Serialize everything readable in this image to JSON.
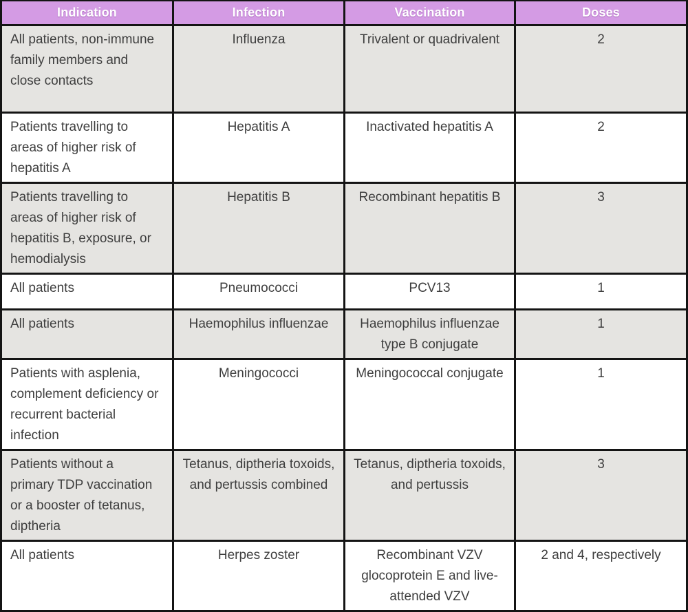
{
  "header": {
    "columns": [
      "Indication",
      "Infection",
      "Vaccination",
      "Doses"
    ]
  },
  "rows": [
    {
      "indication": "All patients, non-immune family members and close contacts",
      "infection": "Influenza",
      "vaccination": "Trivalent or quadrivalent",
      "doses": "2"
    },
    {
      "indication": "Patients travelling to areas of higher risk of hepatitis A",
      "infection": "Hepatitis A",
      "vaccination": "Inactivated hepatitis A",
      "doses": "2"
    },
    {
      "indication": "Patients travelling to areas of higher risk of hepatitis B, exposure, or hemodialysis",
      "infection": "Hepatitis B",
      "vaccination": "Recombinant hepatitis B",
      "doses": "3"
    },
    {
      "indication": "All patients",
      "infection": "Pneumococci",
      "vaccination": "PCV13",
      "doses": "1"
    },
    {
      "indication": "All patients",
      "infection": "Haemophilus influenzae",
      "vaccination": "Haemophilus influenzae type B conjugate",
      "doses": "1"
    },
    {
      "indication": "Patients with asplenia, complement deficiency or recurrent bacterial infection",
      "infection": "Meningococci",
      "vaccination": "Meningococcal conjugate",
      "doses": "1"
    },
    {
      "indication": "Patients without a primary TDP vaccination or a booster of tetanus, diptheria",
      "infection": "Tetanus, diptheria toxoids, and pertussis combined",
      "vaccination": "Tetanus, diptheria toxoids, and pertussis",
      "doses": "3"
    },
    {
      "indication": "All patients",
      "infection": "Herpes zoster",
      "vaccination": "Recombinant VZV glocoprotein E and live-attended VZV",
      "doses": "2 and 4, respectively"
    }
  ],
  "colors": {
    "header_bg": "#d49be4",
    "header_text": "#ffffff",
    "row_bg": "#ffffff",
    "row_alt_bg": "#e5e4e1",
    "text": "#3e3e3e",
    "border": "#141414",
    "frame": "#000000",
    "bottom_strip": "#3a3a3a"
  }
}
